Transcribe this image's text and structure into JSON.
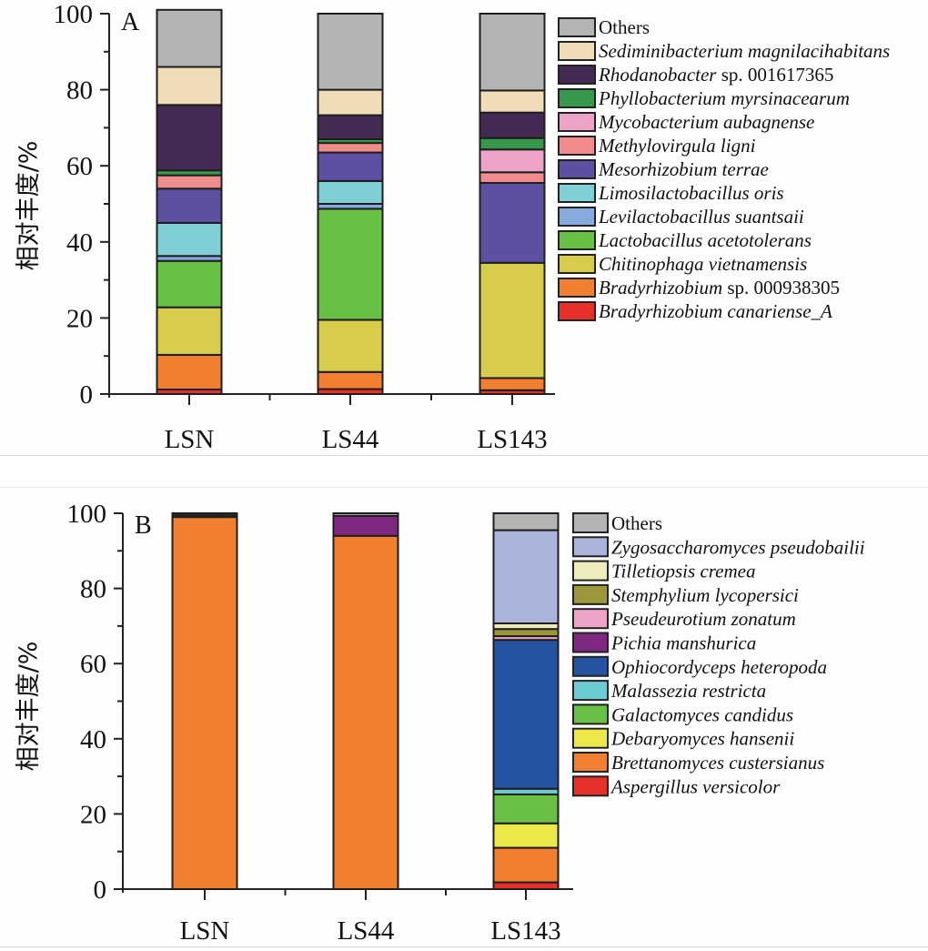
{
  "chart_data": [
    {
      "type": "bar",
      "stacked": true,
      "panel_label": "A",
      "title": "",
      "xlabel": "",
      "ylabel": "相对丰度/%",
      "ylim": [
        0,
        100
      ],
      "yticks": [
        "0",
        "20",
        "40",
        "60",
        "80",
        "100"
      ],
      "grid": false,
      "legend_position": "right",
      "categories": [
        "LSN",
        "LS44",
        "LS143"
      ],
      "series": [
        {
          "name": "Bradyrhizobium canariense_A",
          "italic": "Bradyrhizobium canariense_A",
          "suffix": "",
          "color": "#e8302a",
          "values": [
            1.2,
            1.3,
            1.0
          ]
        },
        {
          "name": "Bradyrhizobium sp. 000938305",
          "italic": "Bradyrhizobium",
          "suffix": " sp. 000938305",
          "color": "#f07f30",
          "values": [
            9.1,
            4.5,
            3.2
          ]
        },
        {
          "name": "Chitinophaga vietnamensis",
          "italic": "Chitinophaga vietnamensis",
          "suffix": "",
          "color": "#d7cc4c",
          "values": [
            12.5,
            13.7,
            30.3
          ]
        },
        {
          "name": "Lactobacillus acetotolerans",
          "italic": "Lactobacillus acetotolerans",
          "suffix": "",
          "color": "#6abf45",
          "values": [
            12.2,
            29.2,
            0
          ]
        },
        {
          "name": "Levilactobacillus suantsaii",
          "italic": "Levilactobacillus suantsaii",
          "suffix": "",
          "color": "#86aadc",
          "values": [
            1.3,
            1.3,
            0
          ]
        },
        {
          "name": "Limosilactobacillus oris",
          "italic": "Limosilactobacillus oris",
          "suffix": "",
          "color": "#7ed0d6",
          "values": [
            8.7,
            6.0,
            0
          ]
        },
        {
          "name": "Mesorhizobium terrae",
          "italic": "Mesorhizobium terrae",
          "suffix": "",
          "color": "#5d50a3",
          "values": [
            9.0,
            7.5,
            21.0
          ]
        },
        {
          "name": "Methylovirgula ligni",
          "italic": "Methylovirgula ligni",
          "suffix": "",
          "color": "#f08c8c",
          "values": [
            3.5,
            2.5,
            2.8
          ]
        },
        {
          "name": "Mycobacterium aubagnense",
          "italic": "Mycobacterium aubagnense",
          "suffix": "",
          "color": "#eda3c8",
          "values": [
            0,
            0,
            6.0
          ]
        },
        {
          "name": "Phyllobacterium myrsinacearum",
          "italic": "Phyllobacterium myrsinacearum",
          "suffix": "",
          "color": "#36984a",
          "values": [
            1.3,
            1.0,
            3.0
          ]
        },
        {
          "name": "Rhodanobacter sp. 001617365",
          "italic": "Rhodanobacter",
          "suffix": " sp. 001617365",
          "color": "#422a52",
          "values": [
            17.2,
            6.3,
            6.7
          ]
        },
        {
          "name": "Sediminibacterium magnilacihabitans",
          "italic": "Sediminibacterium magnilacihabitans",
          "suffix": "",
          "color": "#f0dcb6",
          "values": [
            10.0,
            6.7,
            5.8
          ]
        },
        {
          "name": "Others",
          "italic": "",
          "suffix": "Others",
          "color": "#b4b4b4",
          "values": [
            15.0,
            20.0,
            20.2
          ]
        }
      ]
    },
    {
      "type": "bar",
      "stacked": true,
      "panel_label": "B",
      "title": "",
      "xlabel": "",
      "ylabel": "相对丰度/%",
      "ylim": [
        0,
        100
      ],
      "yticks": [
        "0",
        "20",
        "40",
        "60",
        "80",
        "100"
      ],
      "grid": false,
      "legend_position": "right",
      "categories": [
        "LSN",
        "LS44",
        "LS143"
      ],
      "series": [
        {
          "name": "Aspergillus versicolor",
          "italic": "Aspergillus versicolor",
          "suffix": "",
          "color": "#e8302a",
          "values": [
            0,
            0,
            1.8
          ]
        },
        {
          "name": "Brettanomyces custersianus",
          "italic": "Brettanomyces custersianus",
          "suffix": "",
          "color": "#f07f30",
          "values": [
            99.0,
            94.0,
            9.2
          ]
        },
        {
          "name": "Debaryomyces hansenii",
          "italic": "Debaryomyces hansenii",
          "suffix": "",
          "color": "#ece84a",
          "values": [
            0,
            0,
            6.5
          ]
        },
        {
          "name": "Galactomyces candidus",
          "italic": "Galactomyces candidus",
          "suffix": "",
          "color": "#6abf45",
          "values": [
            0,
            0,
            7.7
          ]
        },
        {
          "name": "Malassezia restricta",
          "italic": "Malassezia restricta",
          "suffix": "",
          "color": "#6ccad2",
          "values": [
            0,
            0,
            1.5
          ]
        },
        {
          "name": "Ophiocordyceps heteropoda",
          "italic": "Ophiocordyceps heteropoda",
          "suffix": "",
          "color": "#2754a0",
          "values": [
            0,
            0,
            39.6
          ]
        },
        {
          "name": "Pichia manshurica",
          "italic": "Pichia manshurica",
          "suffix": "",
          "color": "#7e2880",
          "values": [
            0.5,
            5.3,
            0
          ]
        },
        {
          "name": "Pseudeurotium zonatum",
          "italic": "Pseudeurotium zonatum",
          "suffix": "",
          "color": "#eda3c8",
          "values": [
            0,
            0,
            1.0
          ]
        },
        {
          "name": "Stemphylium lycopersici",
          "italic": "Stemphylium lycopersici",
          "suffix": "",
          "color": "#9c973a",
          "values": [
            0,
            0,
            1.9
          ]
        },
        {
          "name": "Tilletiopsis cremea",
          "italic": "Tilletiopsis cremea",
          "suffix": "",
          "color": "#eeecbc",
          "values": [
            0,
            0,
            1.5
          ]
        },
        {
          "name": "Zygosaccharomyces pseudobailii",
          "italic": "Zygosaccharomyces pseudobailii",
          "suffix": "",
          "color": "#aab4dc",
          "values": [
            0,
            0,
            24.8
          ]
        },
        {
          "name": "Others",
          "italic": "",
          "suffix": "Others",
          "color": "#b4b4b4",
          "values": [
            0.5,
            0.7,
            4.5
          ]
        }
      ]
    }
  ]
}
